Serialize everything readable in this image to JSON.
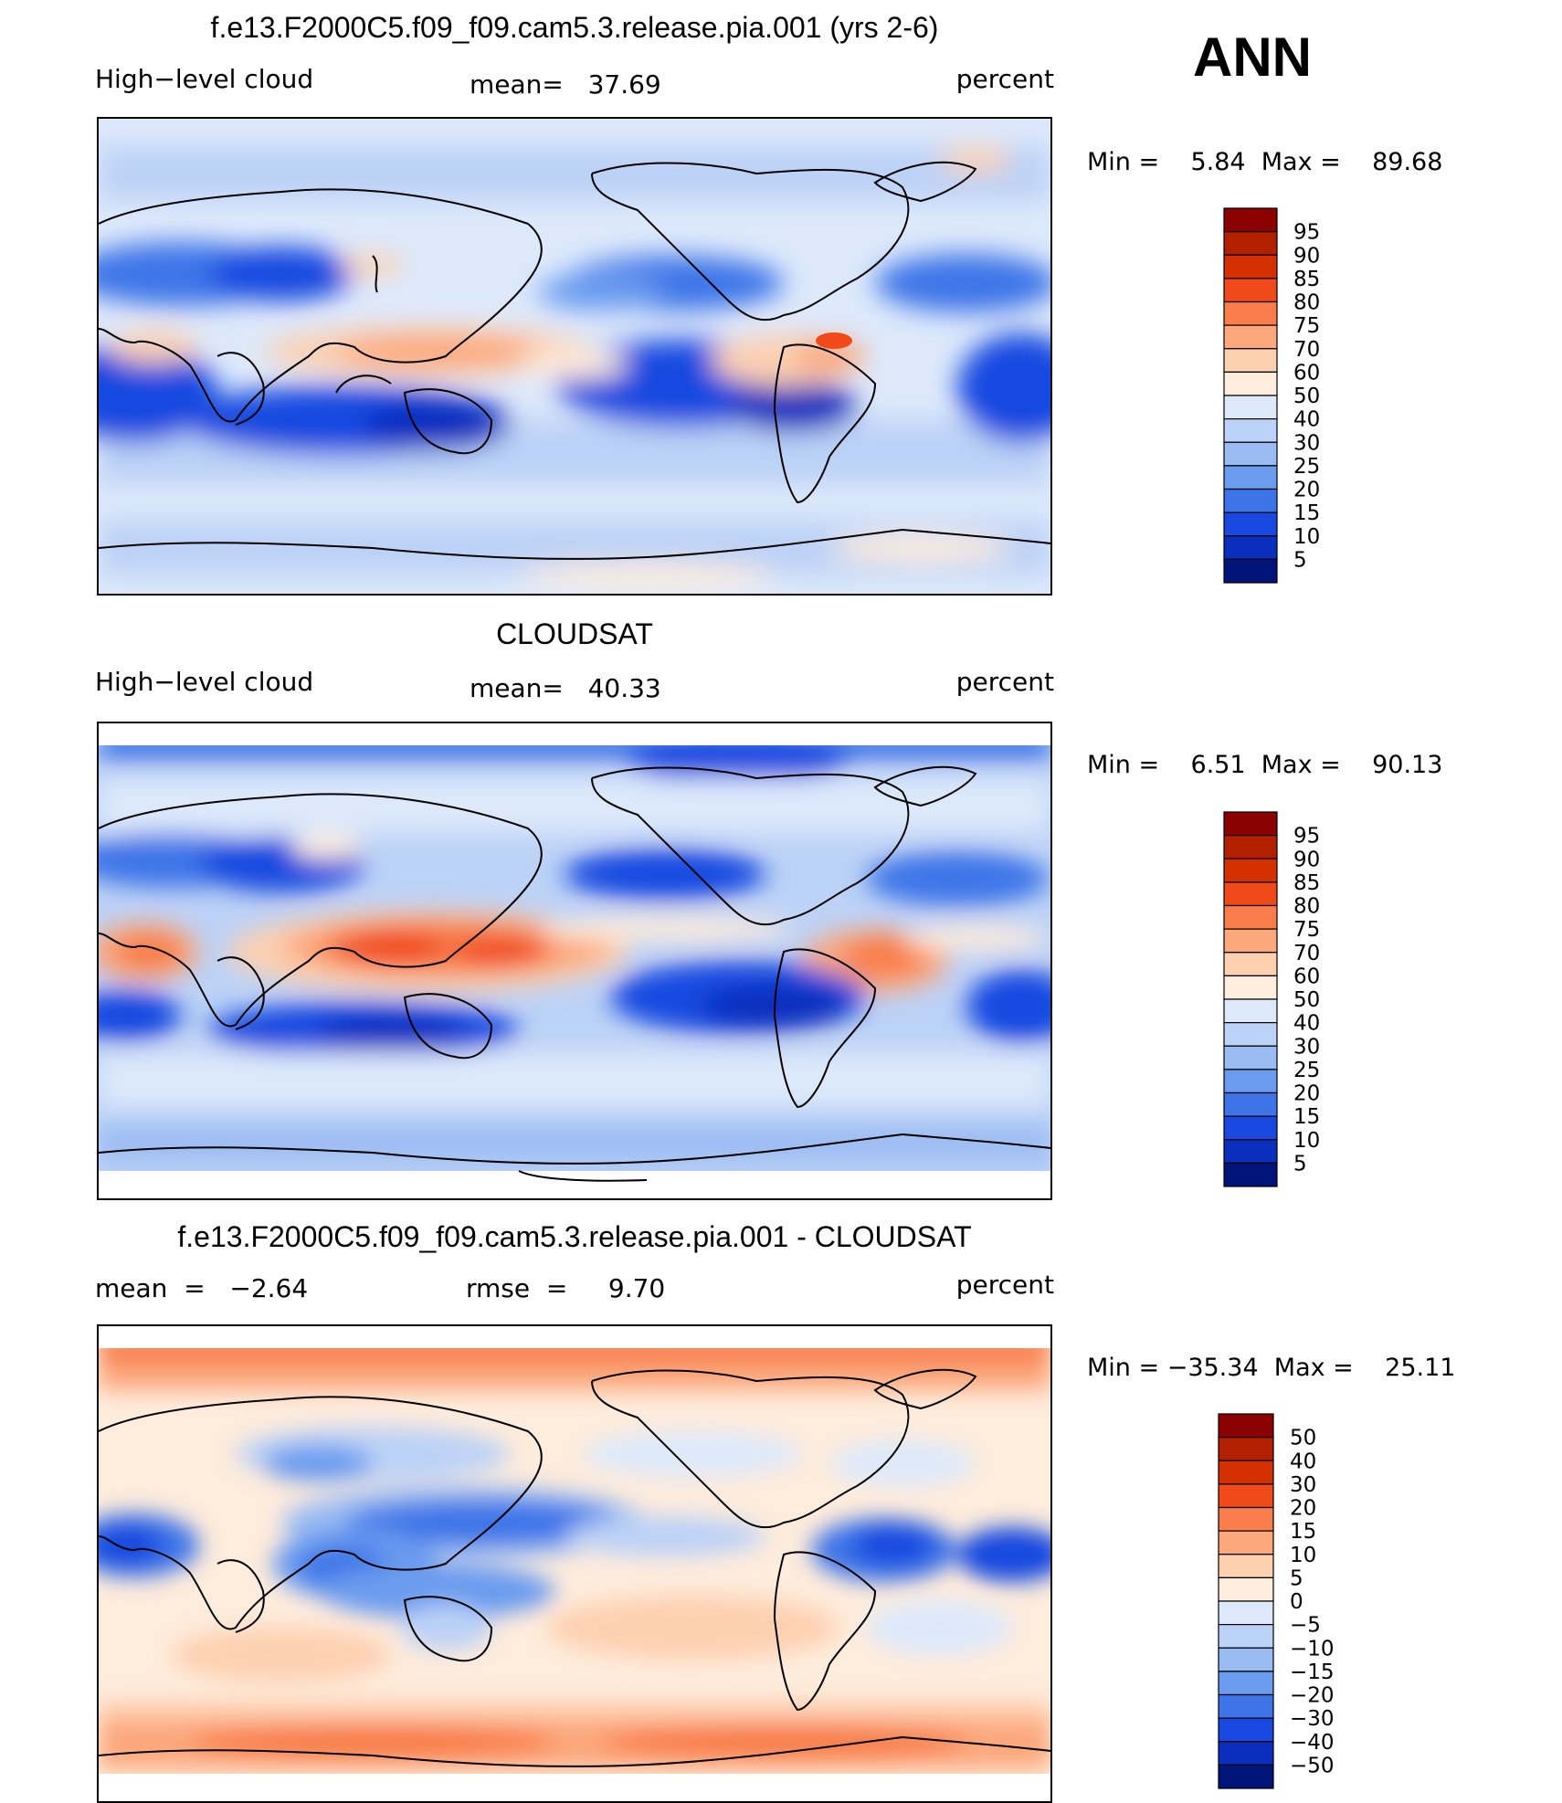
{
  "season": "ANN",
  "panels": [
    {
      "title": "f.e13.F2000C5.f09_f09.cam5.3.release.pia.001 (yrs 2-6)",
      "left_label": "High−level cloud",
      "center_label": "mean=   37.69",
      "right_label": "percent",
      "minmax": "Min =    5.84  Max =    89.68"
    },
    {
      "title": "CLOUDSAT",
      "left_label": "High−level cloud",
      "center_label": "mean=   40.33",
      "right_label": "percent",
      "minmax": "Min =    6.51  Max =    90.13"
    },
    {
      "title": "f.e13.F2000C5.f09_f09.cam5.3.release.pia.001 - CLOUDSAT",
      "left_label": "mean  =   −2.64",
      "center_label": "rmse  =     9.70",
      "right_label": "percent",
      "minmax": "Min = −35.34  Max =    25.11"
    }
  ],
  "colorbars": {
    "abs": {
      "labels": [
        "95",
        "90",
        "85",
        "80",
        "75",
        "70",
        "60",
        "50",
        "40",
        "30",
        "25",
        "20",
        "15",
        "10",
        "5"
      ],
      "colors": [
        "#8b0000",
        "#b22000",
        "#d43000",
        "#f04a1a",
        "#f87d4a",
        "#fca77c",
        "#fdd0b0",
        "#feecdc",
        "#dde9fb",
        "#bcd2f6",
        "#9bbcf3",
        "#6a9bef",
        "#3e74e8",
        "#1848e0",
        "#0a2fbf",
        "#00147a"
      ]
    },
    "diff": {
      "labels": [
        "50",
        "40",
        "30",
        "20",
        "15",
        "10",
        "5",
        "0",
        "−5",
        "−10",
        "−15",
        "−20",
        "−30",
        "−40",
        "−50"
      ],
      "colors": [
        "#8b0000",
        "#b22000",
        "#d43000",
        "#f04a1a",
        "#f87d4a",
        "#fca77c",
        "#fdd0b0",
        "#feecdc",
        "#dde9fb",
        "#bcd2f6",
        "#9bbcf3",
        "#6a9bef",
        "#3e74e8",
        "#1848e0",
        "#0a2fbf",
        "#00147a"
      ]
    }
  },
  "chart_data": [
    {
      "type": "heatmap",
      "title": "f.e13.F2000C5.f09_f09.cam5.3.release.pia.001 (yrs 2-6)",
      "variable": "High−level cloud",
      "units": "percent",
      "mean": 37.69,
      "min": 5.84,
      "max": 89.68,
      "levels": [
        5,
        10,
        15,
        20,
        25,
        30,
        40,
        50,
        60,
        70,
        75,
        80,
        85,
        90,
        95
      ],
      "features": [
        {
          "lon": 220,
          "lat": -12,
          "value": 15
        },
        {
          "lon": 260,
          "lat": -15,
          "value": 15
        },
        {
          "lon": 70,
          "lat": -25,
          "value": 15
        },
        {
          "lon": 110,
          "lat": -28,
          "value": 15
        },
        {
          "lon": 140,
          "lat": 5,
          "value": 65
        },
        {
          "lon": 105,
          "lat": 10,
          "value": 60
        },
        {
          "lon": 284,
          "lat": 8,
          "value": 80
        },
        {
          "lon": 300,
          "lat": -5,
          "value": 55
        },
        {
          "lon": 30,
          "lat": 25,
          "value": 15
        },
        {
          "lon": 310,
          "lat": 30,
          "value": 15
        },
        {
          "lon": 190,
          "lat": 35,
          "value": 25
        },
        {
          "lon": 25,
          "lat": -5,
          "value": 60
        }
      ]
    },
    {
      "type": "heatmap",
      "title": "CLOUDSAT",
      "variable": "High−level cloud",
      "units": "percent",
      "mean": 40.33,
      "min": 6.51,
      "max": 90.13,
      "levels": [
        5,
        10,
        15,
        20,
        25,
        30,
        40,
        50,
        60,
        70,
        75,
        80,
        85,
        90,
        95
      ],
      "features": [
        {
          "lon": 130,
          "lat": 0,
          "value": 82
        },
        {
          "lon": 160,
          "lat": -5,
          "value": 80
        },
        {
          "lon": 25,
          "lat": 0,
          "value": 78
        },
        {
          "lon": 300,
          "lat": -5,
          "value": 78
        },
        {
          "lon": 230,
          "lat": -15,
          "value": 12
        },
        {
          "lon": 80,
          "lat": -25,
          "value": 15
        },
        {
          "lon": 0,
          "lat": -15,
          "value": 15
        },
        {
          "lon": 20,
          "lat": 25,
          "value": 20
        },
        {
          "lon": 200,
          "lat": 30,
          "value": 18
        },
        {
          "lon": 180,
          "lat": 80,
          "value": 15
        }
      ]
    },
    {
      "type": "heatmap",
      "title": "f.e13.F2000C5.f09_f09.cam5.3.release.pia.001 - CLOUDSAT",
      "units": "percent",
      "mean": -2.64,
      "rmse": 9.7,
      "min": -35.34,
      "max": 25.11,
      "levels": [
        -50,
        -40,
        -30,
        -20,
        -15,
        -10,
        -5,
        0,
        5,
        10,
        15,
        20,
        30,
        40,
        50
      ],
      "features": [
        {
          "lon": 180,
          "lat": 85,
          "value": 20
        },
        {
          "lon": 180,
          "lat": -63,
          "value": 18
        },
        {
          "lon": 140,
          "lat": 5,
          "value": -25
        },
        {
          "lon": 95,
          "lat": 0,
          "value": -22
        },
        {
          "lon": 0,
          "lat": 0,
          "value": -25
        },
        {
          "lon": 305,
          "lat": 0,
          "value": -28
        },
        {
          "lon": 335,
          "lat": 0,
          "value": -20
        },
        {
          "lon": 240,
          "lat": -20,
          "value": 8
        },
        {
          "lon": 90,
          "lat": -35,
          "value": 6
        }
      ]
    }
  ]
}
